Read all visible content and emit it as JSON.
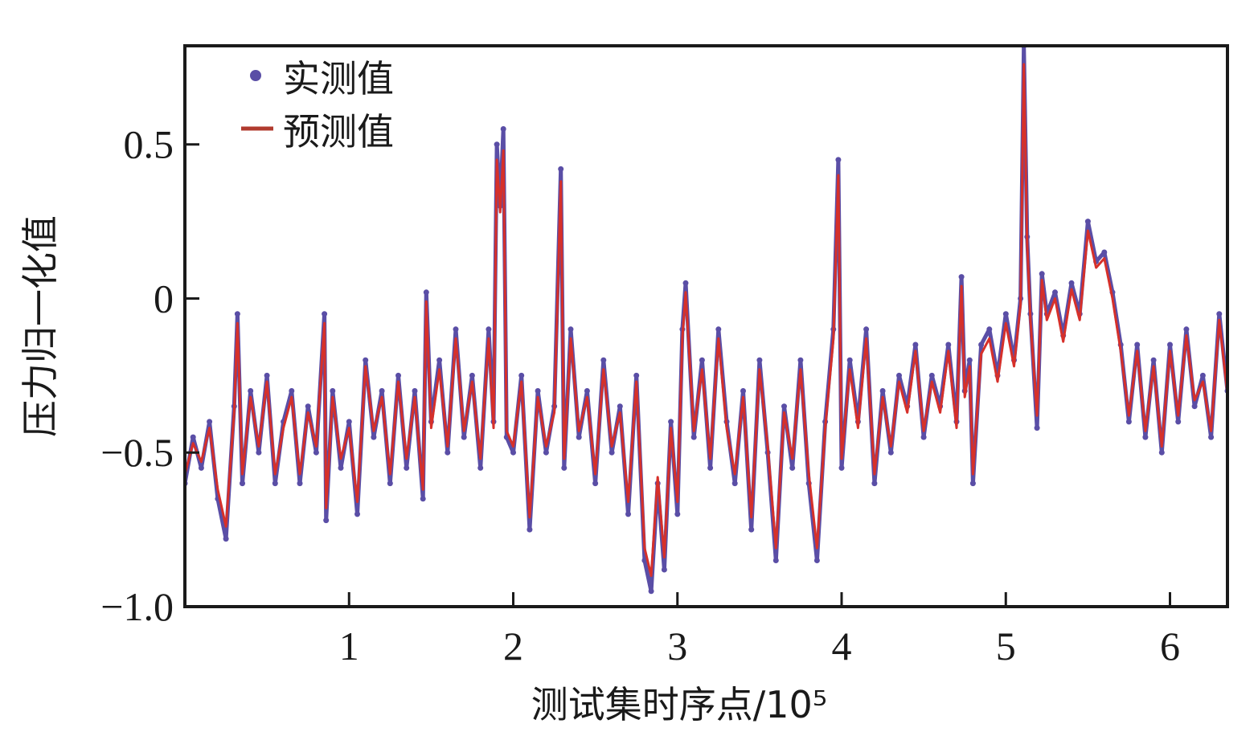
{
  "chart_data": {
    "type": "line",
    "xlabel": "测试集时序点/10⁵",
    "ylabel": "压力归一化值",
    "xlim": [
      0,
      6.35
    ],
    "ylim": [
      -1.0,
      0.82
    ],
    "x_ticks": [
      {
        "value": 1,
        "label": "1"
      },
      {
        "value": 2,
        "label": "2"
      },
      {
        "value": 3,
        "label": "3"
      },
      {
        "value": 4,
        "label": "4"
      },
      {
        "value": 5,
        "label": "5"
      },
      {
        "value": 6,
        "label": "6"
      }
    ],
    "y_ticks": [
      {
        "value": 0.5,
        "label": "0.5"
      },
      {
        "value": 0,
        "label": "0"
      },
      {
        "value": -0.5,
        "label": "−0.5"
      },
      {
        "value": -1.0,
        "label": "−1.0"
      }
    ],
    "legend": {
      "position": "top-left"
    },
    "colors": {
      "measured": "#5a4ea6",
      "predicted": "#d6302a"
    },
    "series": [
      {
        "name": "实测值",
        "style": "dots",
        "x": [
          0,
          0.05,
          0.1,
          0.15,
          0.2,
          0.25,
          0.3,
          0.32,
          0.35,
          0.4,
          0.45,
          0.5,
          0.55,
          0.6,
          0.65,
          0.7,
          0.75,
          0.8,
          0.85,
          0.86,
          0.9,
          0.95,
          1.0,
          1.05,
          1.1,
          1.15,
          1.2,
          1.25,
          1.3,
          1.35,
          1.4,
          1.45,
          1.47,
          1.5,
          1.55,
          1.6,
          1.65,
          1.7,
          1.75,
          1.8,
          1.85,
          1.88,
          1.9,
          1.92,
          1.94,
          1.96,
          2.0,
          2.05,
          2.1,
          2.15,
          2.2,
          2.25,
          2.29,
          2.31,
          2.35,
          2.4,
          2.45,
          2.5,
          2.55,
          2.6,
          2.65,
          2.7,
          2.75,
          2.8,
          2.84,
          2.88,
          2.92,
          2.96,
          3.0,
          3.03,
          3.05,
          3.1,
          3.15,
          3.2,
          3.25,
          3.3,
          3.35,
          3.4,
          3.45,
          3.5,
          3.55,
          3.6,
          3.65,
          3.7,
          3.75,
          3.8,
          3.85,
          3.9,
          3.95,
          3.98,
          4.0,
          4.05,
          4.1,
          4.15,
          4.2,
          4.25,
          4.3,
          4.35,
          4.4,
          4.45,
          4.5,
          4.55,
          4.6,
          4.65,
          4.7,
          4.73,
          4.75,
          4.78,
          4.8,
          4.85,
          4.9,
          4.95,
          5.0,
          5.05,
          5.09,
          5.11,
          5.13,
          5.15,
          5.19,
          5.22,
          5.25,
          5.3,
          5.35,
          5.4,
          5.45,
          5.5,
          5.55,
          5.6,
          5.65,
          5.7,
          5.75,
          5.8,
          5.85,
          5.9,
          5.95,
          6.0,
          6.05,
          6.1,
          6.15,
          6.2,
          6.25,
          6.3,
          6.35
        ],
        "y": [
          -0.6,
          -0.45,
          -0.55,
          -0.4,
          -0.65,
          -0.78,
          -0.35,
          -0.05,
          -0.6,
          -0.3,
          -0.5,
          -0.25,
          -0.6,
          -0.4,
          -0.3,
          -0.6,
          -0.35,
          -0.5,
          -0.05,
          -0.72,
          -0.3,
          -0.55,
          -0.4,
          -0.7,
          -0.2,
          -0.45,
          -0.3,
          -0.6,
          -0.25,
          -0.55,
          -0.3,
          -0.65,
          0.02,
          -0.4,
          -0.2,
          -0.5,
          -0.1,
          -0.45,
          -0.25,
          -0.55,
          -0.1,
          -0.4,
          0.5,
          0.3,
          0.55,
          -0.45,
          -0.5,
          -0.25,
          -0.75,
          -0.3,
          -0.5,
          -0.35,
          0.42,
          -0.55,
          -0.1,
          -0.45,
          -0.3,
          -0.6,
          -0.2,
          -0.5,
          -0.35,
          -0.7,
          -0.25,
          -0.85,
          -0.95,
          -0.6,
          -0.88,
          -0.4,
          -0.7,
          -0.1,
          0.05,
          -0.45,
          -0.2,
          -0.55,
          -0.1,
          -0.4,
          -0.6,
          -0.3,
          -0.75,
          -0.2,
          -0.5,
          -0.85,
          -0.35,
          -0.55,
          -0.2,
          -0.6,
          -0.85,
          -0.4,
          -0.1,
          0.45,
          -0.55,
          -0.2,
          -0.4,
          -0.1,
          -0.6,
          -0.3,
          -0.5,
          -0.25,
          -0.35,
          -0.15,
          -0.45,
          -0.25,
          -0.35,
          -0.15,
          -0.4,
          0.07,
          -0.3,
          -0.2,
          -0.6,
          -0.15,
          -0.1,
          -0.25,
          -0.05,
          -0.2,
          0.0,
          0.82,
          0.2,
          -0.05,
          -0.42,
          0.08,
          -0.05,
          0.02,
          -0.12,
          0.05,
          -0.05,
          0.25,
          0.12,
          0.15,
          0.02,
          -0.15,
          -0.4,
          -0.15,
          -0.45,
          -0.2,
          -0.5,
          -0.15,
          -0.4,
          -0.1,
          -0.35,
          -0.25,
          -0.45,
          -0.05,
          -0.3
        ],
        "color": "#5a4ea6"
      },
      {
        "name": "预测值",
        "style": "line",
        "x": [
          0,
          0.05,
          0.1,
          0.15,
          0.2,
          0.25,
          0.3,
          0.32,
          0.35,
          0.4,
          0.45,
          0.5,
          0.55,
          0.6,
          0.65,
          0.7,
          0.75,
          0.8,
          0.85,
          0.86,
          0.9,
          0.95,
          1.0,
          1.05,
          1.1,
          1.15,
          1.2,
          1.25,
          1.3,
          1.35,
          1.4,
          1.45,
          1.47,
          1.5,
          1.55,
          1.6,
          1.65,
          1.7,
          1.75,
          1.8,
          1.85,
          1.88,
          1.9,
          1.92,
          1.94,
          1.96,
          2.0,
          2.05,
          2.1,
          2.15,
          2.2,
          2.25,
          2.29,
          2.31,
          2.35,
          2.4,
          2.45,
          2.5,
          2.55,
          2.6,
          2.65,
          2.7,
          2.75,
          2.8,
          2.84,
          2.88,
          2.92,
          2.96,
          3.0,
          3.03,
          3.05,
          3.1,
          3.15,
          3.2,
          3.25,
          3.3,
          3.35,
          3.4,
          3.45,
          3.5,
          3.55,
          3.6,
          3.65,
          3.7,
          3.75,
          3.8,
          3.85,
          3.9,
          3.95,
          3.98,
          4.0,
          4.05,
          4.1,
          4.15,
          4.2,
          4.25,
          4.3,
          4.35,
          4.4,
          4.45,
          4.5,
          4.55,
          4.6,
          4.65,
          4.7,
          4.73,
          4.75,
          4.78,
          4.8,
          4.85,
          4.9,
          4.95,
          5.0,
          5.05,
          5.09,
          5.11,
          5.13,
          5.15,
          5.19,
          5.22,
          5.25,
          5.3,
          5.35,
          5.4,
          5.45,
          5.5,
          5.55,
          5.6,
          5.65,
          5.7,
          5.75,
          5.8,
          5.85,
          5.9,
          5.95,
          6.0,
          6.05,
          6.1,
          6.15,
          6.2,
          6.25,
          6.3,
          6.35
        ],
        "y": [
          -0.57,
          -0.47,
          -0.53,
          -0.42,
          -0.62,
          -0.74,
          -0.37,
          -0.08,
          -0.57,
          -0.32,
          -0.48,
          -0.27,
          -0.57,
          -0.42,
          -0.32,
          -0.57,
          -0.37,
          -0.48,
          -0.08,
          -0.68,
          -0.32,
          -0.52,
          -0.42,
          -0.66,
          -0.22,
          -0.43,
          -0.32,
          -0.57,
          -0.27,
          -0.52,
          -0.32,
          -0.62,
          -0.01,
          -0.42,
          -0.23,
          -0.48,
          -0.13,
          -0.43,
          -0.27,
          -0.52,
          -0.13,
          -0.42,
          0.45,
          0.28,
          0.48,
          -0.43,
          -0.48,
          -0.27,
          -0.71,
          -0.32,
          -0.48,
          -0.37,
          0.38,
          -0.52,
          -0.13,
          -0.43,
          -0.32,
          -0.57,
          -0.23,
          -0.48,
          -0.37,
          -0.66,
          -0.27,
          -0.81,
          -0.9,
          -0.58,
          -0.84,
          -0.42,
          -0.66,
          -0.13,
          0.02,
          -0.43,
          -0.23,
          -0.52,
          -0.13,
          -0.42,
          -0.57,
          -0.32,
          -0.71,
          -0.23,
          -0.48,
          -0.81,
          -0.37,
          -0.52,
          -0.23,
          -0.57,
          -0.81,
          -0.42,
          -0.13,
          0.4,
          -0.52,
          -0.23,
          -0.42,
          -0.13,
          -0.57,
          -0.32,
          -0.48,
          -0.27,
          -0.37,
          -0.17,
          -0.43,
          -0.27,
          -0.37,
          -0.17,
          -0.42,
          0.04,
          -0.32,
          -0.22,
          -0.57,
          -0.18,
          -0.13,
          -0.27,
          -0.08,
          -0.22,
          -0.02,
          0.76,
          0.18,
          -0.07,
          -0.38,
          0.06,
          -0.07,
          0.0,
          -0.14,
          0.03,
          -0.07,
          0.22,
          0.1,
          0.13,
          0.0,
          -0.17,
          -0.38,
          -0.17,
          -0.43,
          -0.22,
          -0.48,
          -0.17,
          -0.38,
          -0.12,
          -0.33,
          -0.27,
          -0.43,
          -0.07,
          -0.31
        ],
        "color": "#d6302a"
      }
    ]
  }
}
